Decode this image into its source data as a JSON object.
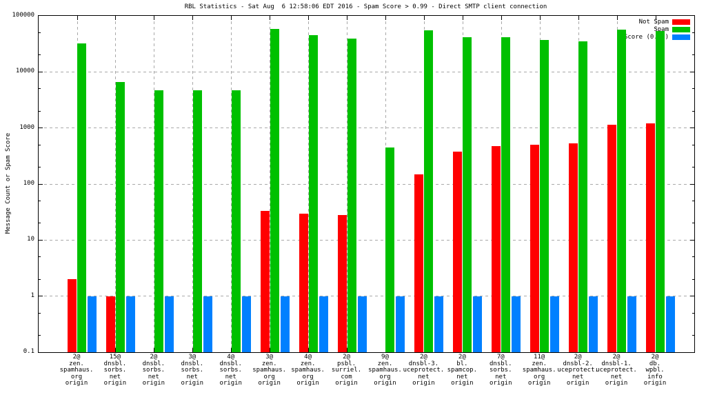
{
  "title": "RBL Statistics - Sat Aug  6 12:58:06 EDT 2016 - Spam Score > 0.99 - Direct SMTP client connection",
  "y_axis_label": "Message Count or Spam Score",
  "legend": {
    "position": "top-right",
    "items": [
      {
        "label": "Not Spam",
        "color": "#ff0000"
      },
      {
        "label": "Spam",
        "color": "#00c000"
      },
      {
        "label": "Score (0..1)",
        "color": "#0080ff"
      }
    ]
  },
  "colors": {
    "not_spam": "#ff0000",
    "spam": "#00c000",
    "score": "#0080ff",
    "grid": "#a8a8a8",
    "axis": "#000000",
    "background": "#ffffff"
  },
  "chart_data": {
    "type": "bar",
    "title": "RBL Statistics - Sat Aug  6 12:58:06 EDT 2016 - Spam Score > 0.99 - Direct SMTP client connection",
    "xlabel": "",
    "ylabel": "Message Count or Spam Score",
    "y_scale": "log",
    "ylim": [
      0.1,
      100000
    ],
    "y_tick_labels": [
      "100000",
      "10000",
      "1000",
      "100",
      "10",
      "1",
      "0.1"
    ],
    "grid": true,
    "legend_position": "top-right",
    "categories": [
      [
        "2@",
        "zen.",
        "spamhaus.",
        "org",
        "origin"
      ],
      [
        "15@",
        "dnsbl.",
        "sorbs.",
        "net",
        "origin"
      ],
      [
        "2@",
        "dnsbl.",
        "sorbs.",
        "net",
        "origin"
      ],
      [
        "3@",
        "dnsbl.",
        "sorbs.",
        "net",
        "origin"
      ],
      [
        "4@",
        "dnsbl.",
        "sorbs.",
        "net",
        "origin"
      ],
      [
        "3@",
        "zen.",
        "spamhaus.",
        "org",
        "origin"
      ],
      [
        "4@",
        "zen.",
        "spamhaus.",
        "org",
        "origin"
      ],
      [
        "2@",
        "psbl.",
        "surriel.",
        "com",
        "origin"
      ],
      [
        "9@",
        "zen.",
        "spamhaus.",
        "org",
        "origin"
      ],
      [
        "2@",
        "dnsbl-3.",
        "uceprotect.",
        "net",
        "origin"
      ],
      [
        "2@",
        "bl.",
        "spamcop.",
        "net",
        "origin"
      ],
      [
        "7@",
        "dnsbl.",
        "sorbs.",
        "net",
        "origin"
      ],
      [
        "11@",
        "zen.",
        "spamhaus.",
        "org",
        "origin"
      ],
      [
        "2@",
        "dnsbl-2.",
        "uceprotect.",
        "net",
        "origin"
      ],
      [
        "2@",
        "dnsbl-1.",
        "uceprotect.",
        "net",
        "origin"
      ],
      [
        "2@",
        "db.",
        "wpbl.",
        "info",
        "origin"
      ]
    ],
    "series": [
      {
        "name": "Not Spam",
        "color": "#ff0000",
        "values": [
          2,
          1,
          null,
          null,
          null,
          33,
          30,
          28,
          null,
          150,
          380,
          480,
          500,
          530,
          1150,
          1200
        ]
      },
      {
        "name": "Spam",
        "color": "#00c000",
        "values": [
          32000,
          6600,
          4700,
          4700,
          4700,
          58000,
          45000,
          39000,
          450,
          55000,
          41000,
          42000,
          37000,
          35000,
          57000,
          53000
        ]
      },
      {
        "name": "Score (0..1)",
        "color": "#0080ff",
        "values": [
          1,
          1,
          1,
          1,
          1,
          1,
          1,
          1,
          1,
          1,
          1,
          1,
          1,
          1,
          1,
          1
        ]
      }
    ]
  }
}
